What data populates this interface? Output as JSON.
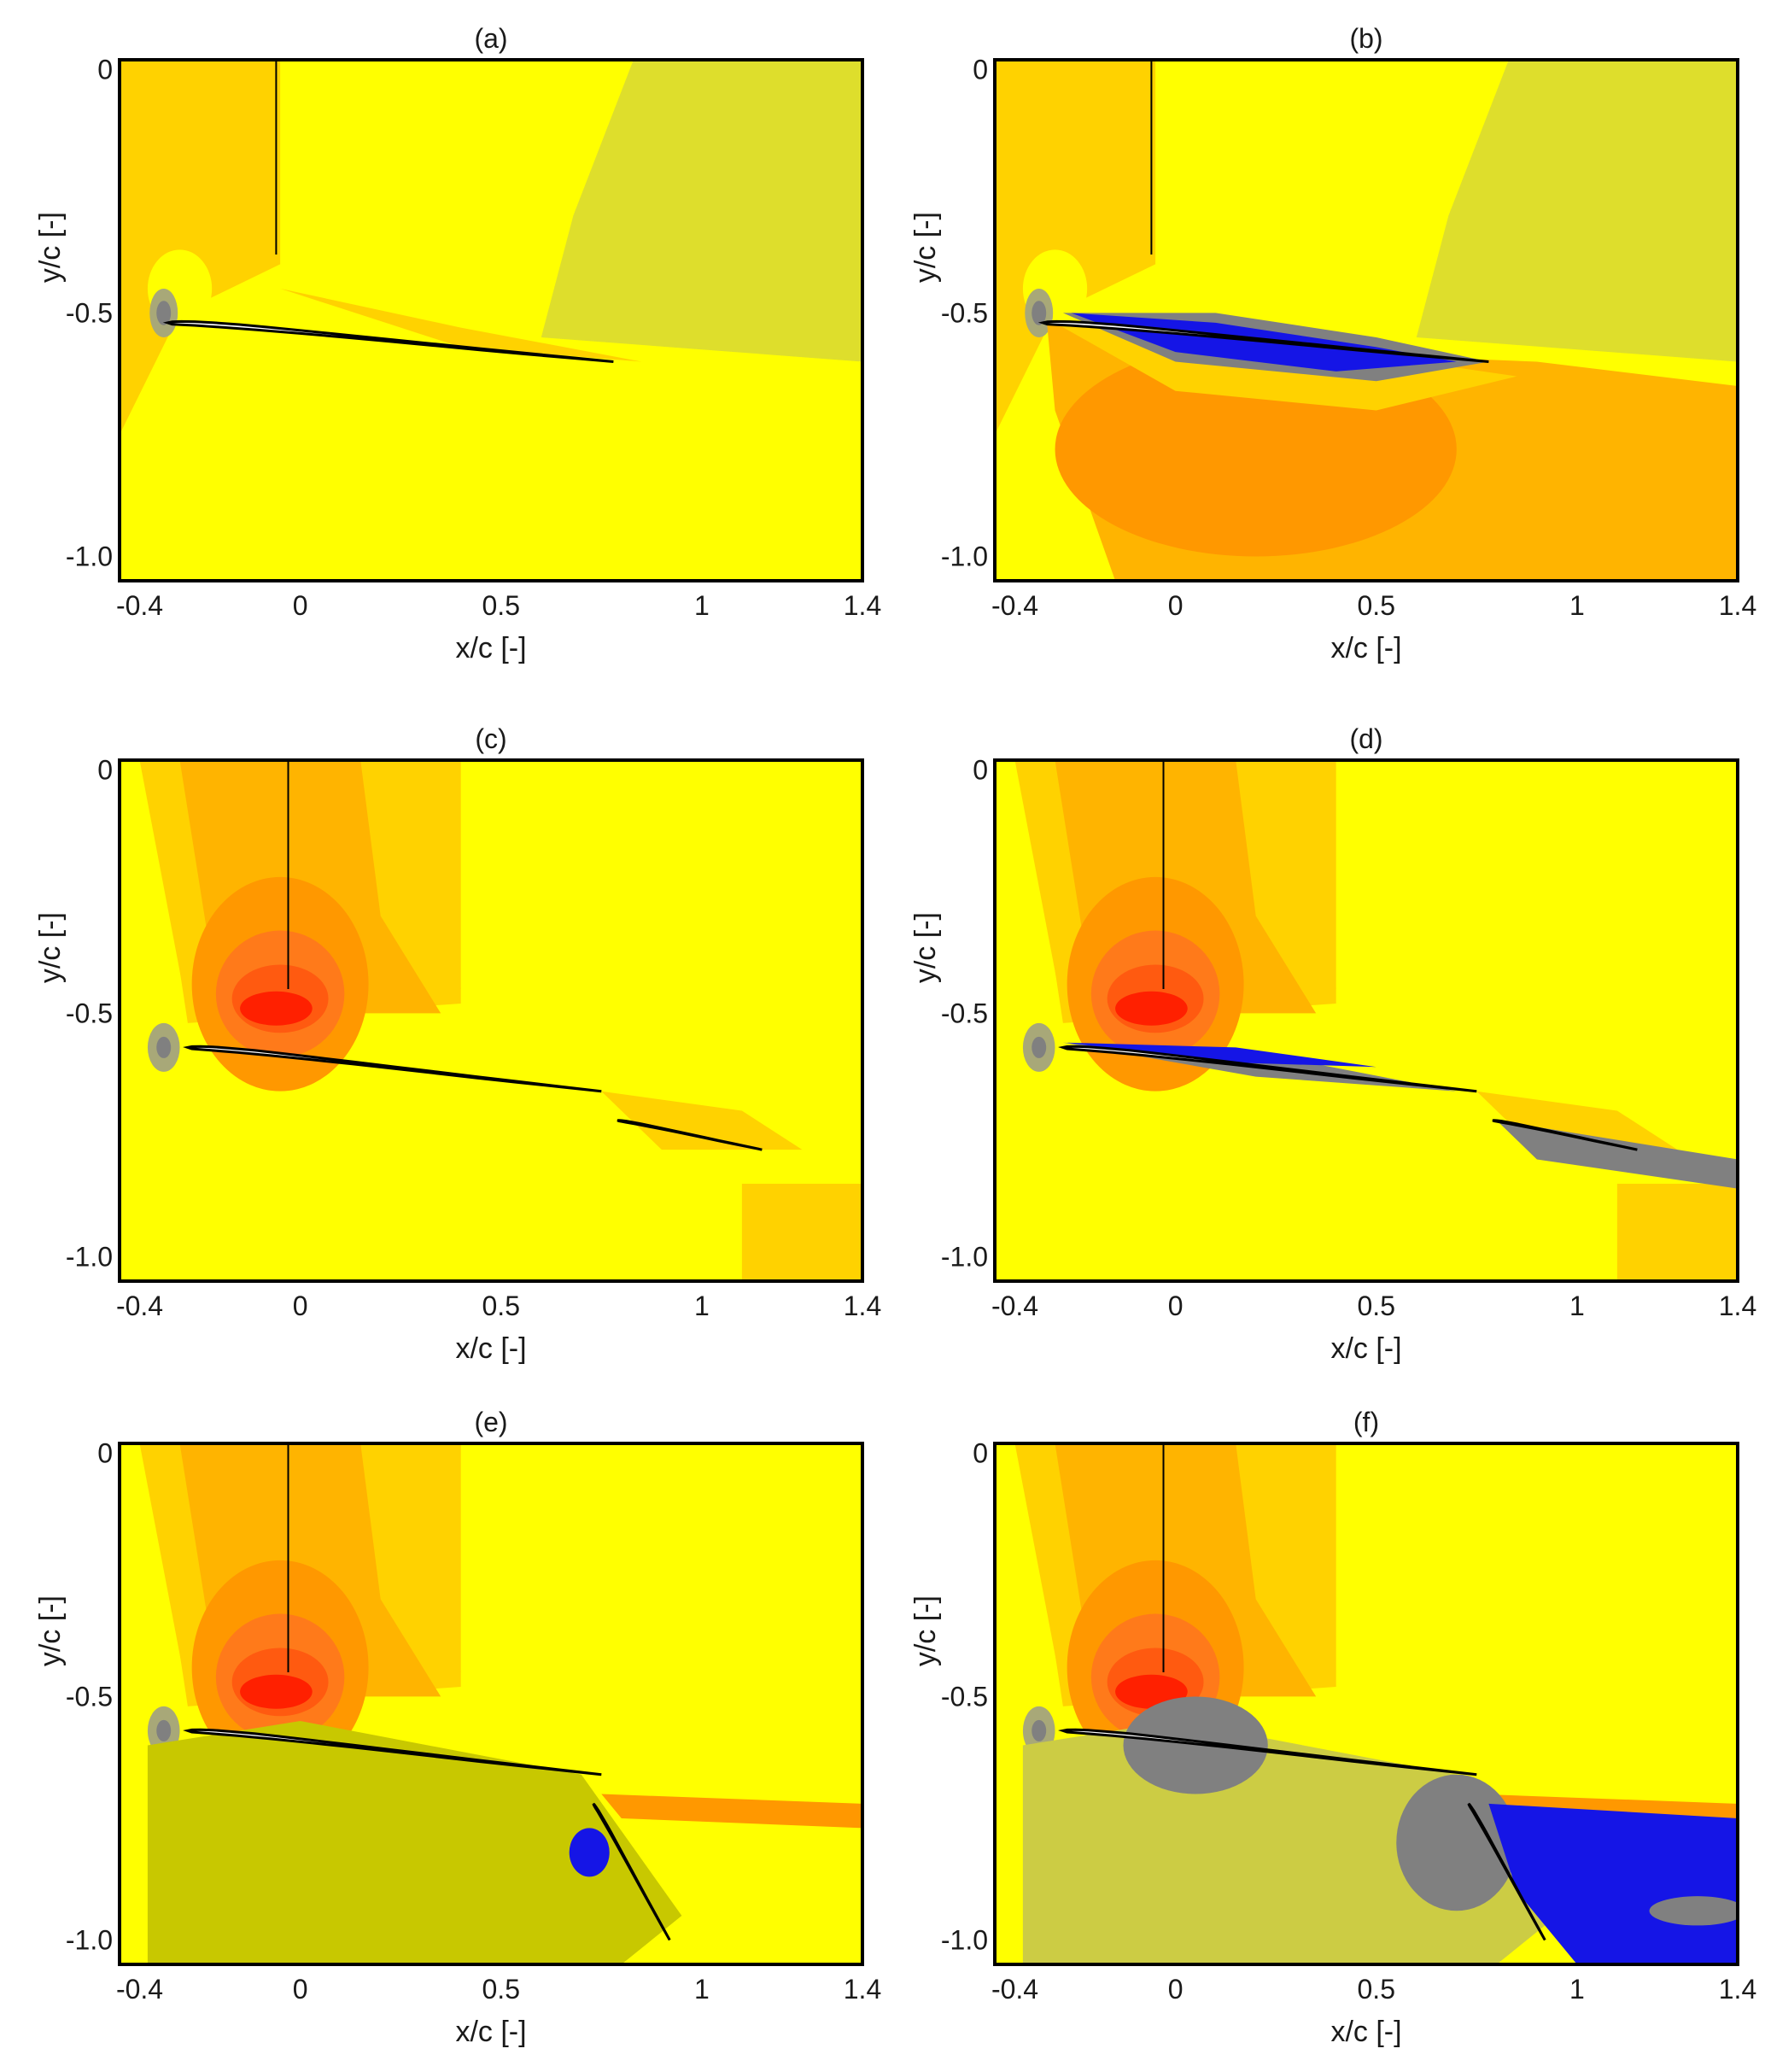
{
  "colors": {
    "frame": "#000000",
    "airfoil_fill": "#ffffff",
    "yellow": "#ffff00",
    "yellow_olive": "#dede2c",
    "olive": "#c8c800",
    "olive_light": "#cccc44",
    "light_orange": "#ffd200",
    "orange": "#ffb400",
    "dark_orange": "#ff9800",
    "deep_orange": "#ff7a1a",
    "red_orange": "#ff5a10",
    "red": "#ff2000",
    "grey": "#a8a878",
    "dark_grey": "#808080",
    "blue": "#1515e6"
  },
  "chart_data": [
    {
      "type": "contour",
      "label": "(a)",
      "xlabel": "x/c [-]",
      "ylabel": "y/c [-]",
      "xlim": [
        -0.45,
        1.4
      ],
      "ylim": [
        -1.05,
        0.02
      ],
      "xticks": [
        -0.4,
        0,
        0.5,
        1,
        1.4
      ],
      "xtick_labels": [
        "-0.4",
        "0",
        "0.5",
        "1",
        "1.4"
      ],
      "yticks": [
        0,
        -0.5,
        -1.0
      ],
      "ytick_labels": [
        "0",
        "-0.5",
        "-1.0"
      ],
      "elements": [
        "main"
      ],
      "field_variant": "a"
    },
    {
      "type": "contour",
      "label": "(b)",
      "xlabel": "x/c [-]",
      "ylabel": "y/c [-]",
      "xlim": [
        -0.45,
        1.4
      ],
      "ylim": [
        -1.05,
        0.02
      ],
      "xticks": [
        -0.4,
        0,
        0.5,
        1,
        1.4
      ],
      "xtick_labels": [
        "-0.4",
        "0",
        "0.5",
        "1",
        "1.4"
      ],
      "yticks": [
        0,
        -0.5,
        -1.0
      ],
      "ytick_labels": [
        "0",
        "-0.5",
        "-1.0"
      ],
      "elements": [
        "main"
      ],
      "field_variant": "b"
    },
    {
      "type": "contour",
      "label": "(c)",
      "xlabel": "x/c [-]",
      "ylabel": "y/c [-]",
      "xlim": [
        -0.45,
        1.4
      ],
      "ylim": [
        -1.05,
        0.02
      ],
      "xticks": [
        -0.4,
        0,
        0.5,
        1,
        1.4
      ],
      "xtick_labels": [
        "-0.4",
        "0",
        "0.5",
        "1",
        "1.4"
      ],
      "yticks": [
        0,
        -0.5,
        -1.0
      ],
      "ytick_labels": [
        "0",
        "-0.5",
        "-1.0"
      ],
      "elements": [
        "main",
        "flap"
      ],
      "field_variant": "c"
    },
    {
      "type": "contour",
      "label": "(d)",
      "xlabel": "x/c [-]",
      "ylabel": "y/c [-]",
      "xlim": [
        -0.45,
        1.4
      ],
      "ylim": [
        -1.05,
        0.02
      ],
      "xticks": [
        -0.4,
        0,
        0.5,
        1,
        1.4
      ],
      "xtick_labels": [
        "-0.4",
        "0",
        "0.5",
        "1",
        "1.4"
      ],
      "yticks": [
        0,
        -0.5,
        -1.0
      ],
      "ytick_labels": [
        "0",
        "-0.5",
        "-1.0"
      ],
      "elements": [
        "main",
        "flap"
      ],
      "field_variant": "d"
    },
    {
      "type": "contour",
      "label": "(e)",
      "xlabel": "x/c [-]",
      "ylabel": "y/c [-]",
      "xlim": [
        -0.45,
        1.4
      ],
      "ylim": [
        -1.05,
        0.02
      ],
      "xticks": [
        -0.4,
        0,
        0.5,
        1,
        1.4
      ],
      "xtick_labels": [
        "-0.4",
        "0",
        "0.5",
        "1",
        "1.4"
      ],
      "yticks": [
        0,
        -0.5,
        -1.0
      ],
      "ytick_labels": [
        "0",
        "-0.5",
        "-1.0"
      ],
      "elements": [
        "main",
        "flap-deflected"
      ],
      "field_variant": "e"
    },
    {
      "type": "contour",
      "label": "(f)",
      "xlabel": "x/c [-]",
      "ylabel": "y/c [-]",
      "xlim": [
        -0.45,
        1.4
      ],
      "ylim": [
        -1.05,
        0.02
      ],
      "xticks": [
        -0.4,
        0,
        0.5,
        1,
        1.4
      ],
      "xtick_labels": [
        "-0.4",
        "0",
        "0.5",
        "1",
        "1.4"
      ],
      "yticks": [
        0,
        -0.5,
        -1.0
      ],
      "ytick_labels": [
        "0",
        "-0.5",
        "-1.0"
      ],
      "elements": [
        "main",
        "flap-deflected"
      ],
      "field_variant": "f"
    }
  ]
}
